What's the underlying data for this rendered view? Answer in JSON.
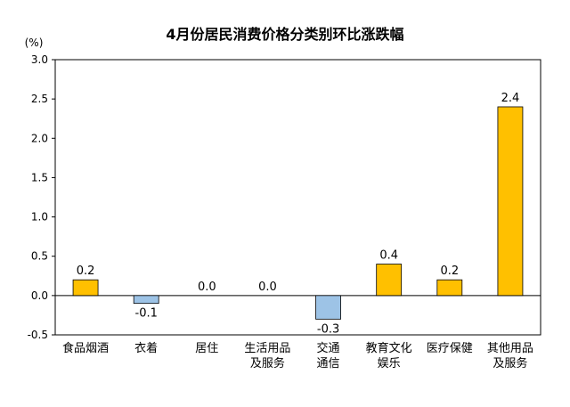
{
  "chart_data": {
    "type": "bar",
    "title": "4月份居民消费价格分类别环比涨跌幅",
    "unit_label": "(%)",
    "categories": [
      [
        "食品烟酒"
      ],
      [
        "衣着"
      ],
      [
        "居住"
      ],
      [
        "生活用品",
        "及服务"
      ],
      [
        "交通",
        "通信"
      ],
      [
        "教育文化",
        "娱乐"
      ],
      [
        "医疗保健"
      ],
      [
        "其他用品",
        "及服务"
      ]
    ],
    "values": [
      0.2,
      -0.1,
      0.0,
      0.0,
      -0.3,
      0.4,
      0.2,
      2.4
    ],
    "value_labels": [
      "0.2",
      "-0.1",
      "0.0",
      "0.0",
      "-0.3",
      "0.4",
      "0.2",
      "2.4"
    ],
    "ylim": [
      -0.5,
      3.0
    ],
    "yticks": [
      -0.5,
      0.0,
      0.5,
      1.0,
      1.5,
      2.0,
      2.5,
      3.0
    ],
    "ytick_labels": [
      "-0.5",
      "0.0",
      "0.5",
      "1.0",
      "1.5",
      "2.0",
      "2.5",
      "3.0"
    ],
    "grid": false,
    "colors": {
      "positive": "#FFC000",
      "negative": "#9DC3E6",
      "bar_stroke": "#000000",
      "axis": "#000000"
    }
  }
}
